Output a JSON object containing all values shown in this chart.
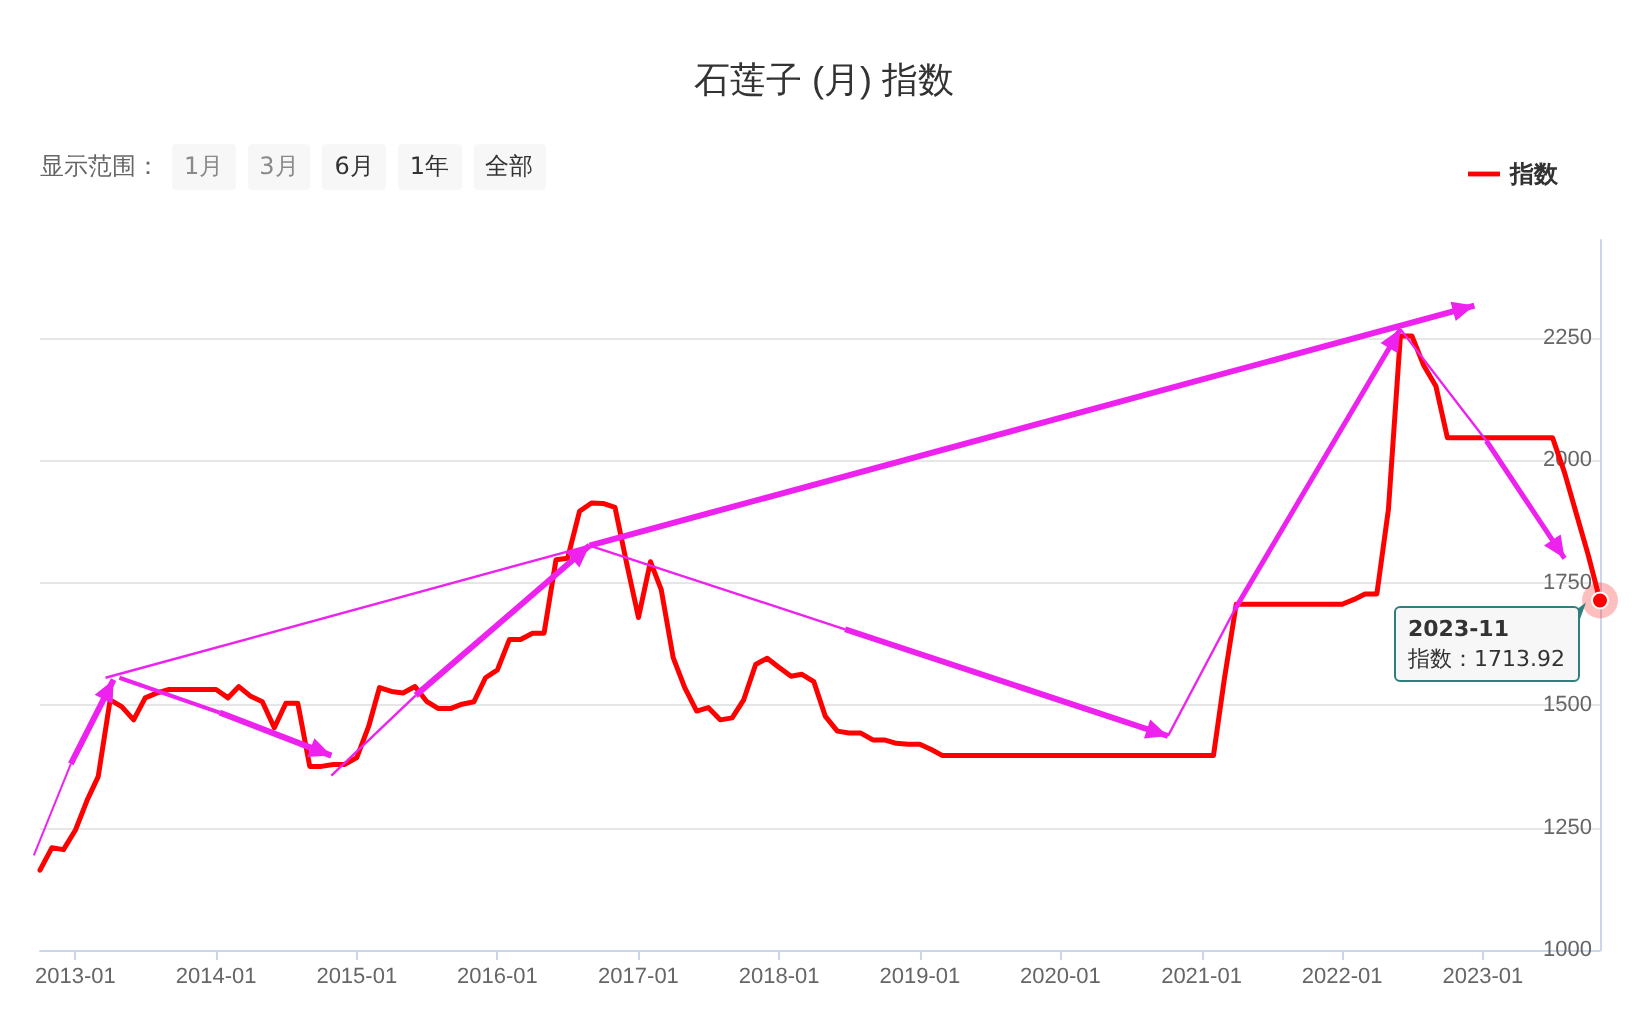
{
  "chart_data": {
    "type": "line",
    "title": "石莲子 (月) 指数",
    "x": [
      "2012-10",
      "2012-11",
      "2012-12",
      "2013-01",
      "2013-02",
      "2013-03",
      "2013-04",
      "2013-05",
      "2013-06",
      "2013-07",
      "2013-08",
      "2013-09",
      "2013-10",
      "2013-11",
      "2013-12",
      "2014-01",
      "2014-02",
      "2014-03",
      "2014-04",
      "2014-05",
      "2014-06",
      "2014-07",
      "2014-08",
      "2014-09",
      "2014-10",
      "2014-11",
      "2014-12",
      "2015-01",
      "2015-02",
      "2015-03",
      "2015-04",
      "2015-05",
      "2015-06",
      "2015-07",
      "2015-08",
      "2015-09",
      "2015-10",
      "2015-11",
      "2015-12",
      "2016-01",
      "2016-02",
      "2016-03",
      "2016-04",
      "2016-05",
      "2016-06",
      "2016-07",
      "2016-08",
      "2016-09",
      "2016-10",
      "2016-11",
      "2016-12",
      "2017-01",
      "2017-02",
      "2017-03",
      "2017-04",
      "2017-05",
      "2017-06",
      "2017-07",
      "2017-08",
      "2017-09",
      "2017-10",
      "2017-11",
      "2017-12",
      "2018-01",
      "2018-02",
      "2018-03",
      "2018-04",
      "2018-05",
      "2018-06",
      "2018-07",
      "2018-08",
      "2018-09",
      "2018-10",
      "2018-11",
      "2018-12",
      "2019-01",
      "2019-02",
      "2019-03",
      "2019-04",
      "2019-05",
      "2019-06",
      "2019-07",
      "2019-08",
      "2019-09",
      "2019-10",
      "2019-11",
      "2019-12",
      "2020-01",
      "2020-02",
      "2020-03",
      "2020-04",
      "2020-05",
      "2020-06",
      "2020-07",
      "2020-08",
      "2020-09",
      "2020-10",
      "2020-11",
      "2020-12",
      "2021-01",
      "2021-02",
      "2021-03",
      "2021-04",
      "2021-05",
      "2021-06",
      "2021-07",
      "2021-08",
      "2021-09",
      "2021-10",
      "2021-11",
      "2021-12",
      "2022-01",
      "2022-02",
      "2022-03",
      "2022-04",
      "2022-05",
      "2022-06",
      "2022-07",
      "2022-08",
      "2022-09",
      "2022-10",
      "2022-11",
      "2022-12",
      "2023-01",
      "2023-02",
      "2023-03",
      "2023-04",
      "2023-05",
      "2023-06",
      "2023-07",
      "2023-08",
      "2023-09",
      "2023-10",
      "2023-11"
    ],
    "series": [
      {
        "name": "指数",
        "color": "#ff0000",
        "values": [
          1163,
          1209,
          1205,
          1245,
          1307,
          1354,
          1511,
          1497,
          1470,
          1515,
          1525,
          1532,
          1532,
          1532,
          1532,
          1532,
          1515,
          1538,
          1518,
          1507,
          1454,
          1504,
          1504,
          1375,
          1375,
          1379,
          1379,
          1393,
          1457,
          1536,
          1528,
          1525,
          1538,
          1508,
          1493,
          1493,
          1502,
          1507,
          1556,
          1572,
          1634,
          1634,
          1647,
          1647,
          1797,
          1800,
          1896,
          1913,
          1912,
          1904,
          1791,
          1679,
          1793,
          1736,
          1597,
          1536,
          1488,
          1495,
          1470,
          1474,
          1511,
          1583,
          1596,
          1577,
          1559,
          1563,
          1548,
          1477,
          1447,
          1443,
          1443,
          1429,
          1429,
          1422,
          1420,
          1420,
          1409,
          1397,
          1397,
          1397,
          1397,
          1397,
          1397,
          1397,
          1397,
          1397,
          1397,
          1397,
          1397,
          1397,
          1397,
          1397,
          1397,
          1397,
          1397,
          1397,
          1397,
          1397,
          1397,
          1397,
          1397,
          1552,
          1706,
          1706,
          1706,
          1706,
          1706,
          1706,
          1706,
          1706,
          1706,
          1706,
          1716,
          1727,
          1727,
          1900,
          2254,
          2254,
          2193,
          2152,
          2046,
          2046,
          2046,
          2046,
          2046,
          2046,
          2046,
          2046,
          2046,
          2046,
          1975,
          1890,
          1808,
          1713.92
        ]
      }
    ],
    "xlim": [
      "2012-10",
      "2023-11"
    ],
    "xticks": [
      "2013-01",
      "2014-01",
      "2015-01",
      "2016-01",
      "2017-01",
      "2018-01",
      "2019-01",
      "2020-01",
      "2021-01",
      "2022-01",
      "2023-01"
    ],
    "ylim": [
      1000,
      2450
    ],
    "yticks": [
      1000,
      1250,
      1500,
      1750,
      2000,
      2250
    ],
    "grid": "y",
    "legend": "top right",
    "marker": "none",
    "line_style": "solid",
    "annotations": [
      "显示范围：",
      "1月",
      "3月",
      "6月",
      "1年",
      "全部",
      {
        "text": "2023-11\n指数：1713.92",
        "x": "2023-11",
        "y": 1713.92
      }
    ]
  }
}
